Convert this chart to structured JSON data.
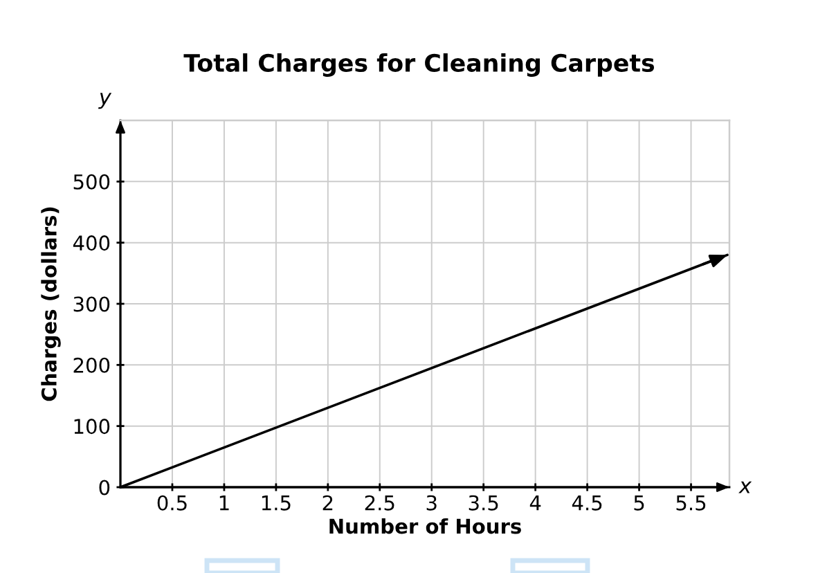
{
  "chart_data": {
    "type": "line",
    "title": "Total Charges for Cleaning Carpets",
    "xlabel": "Number of Hours",
    "ylabel": "Charges (dollars)",
    "annotations": [
      "y",
      "x"
    ],
    "x": [
      0,
      5.85
    ],
    "series": [
      {
        "color": "#000000",
        "values": [
          0,
          380
        ]
      }
    ],
    "xlim": [
      0,
      5.87
    ],
    "ylim": [
      0,
      600
    ],
    "xticks": [
      0.5,
      1,
      1.5,
      2,
      2.5,
      3,
      3.5,
      4,
      4.5,
      5,
      5.5
    ],
    "yticks": [
      0,
      100,
      200,
      300,
      400,
      500
    ],
    "grid": true,
    "line_style": "solid"
  }
}
